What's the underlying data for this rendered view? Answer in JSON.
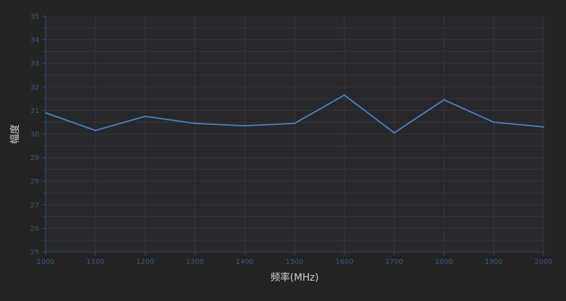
{
  "chart_data": {
    "type": "line",
    "title": "",
    "xlabel": "频率(MHz)",
    "ylabel": "幅度",
    "x": [
      1000,
      1100,
      1200,
      1300,
      1400,
      1500,
      1600,
      1700,
      1800,
      1900,
      2000
    ],
    "series": [
      {
        "values": [
          30.9,
          30.15,
          30.75,
          30.45,
          30.35,
          30.45,
          31.65,
          30.05,
          31.45,
          30.5,
          30.3
        ]
      }
    ],
    "xlim": [
      1000,
      2000
    ],
    "ylim": [
      25,
      35
    ],
    "xticks": [
      "1000",
      "1100",
      "1200",
      "1300",
      "1400",
      "1500",
      "1600",
      "1700",
      "1800",
      "1900",
      "2000"
    ],
    "yticks": [
      "25",
      "26",
      "27",
      "28",
      "29",
      "30",
      "31",
      "32",
      "33",
      "34",
      "35"
    ],
    "grid": true,
    "colors": {
      "background": "#232323",
      "plot_background": "#26282c",
      "grid": "#34363b",
      "axis": "#2e4e7a",
      "tick_label": "#3c5a86",
      "axis_title": "#d0d0d0",
      "line": "#4f7cb8"
    }
  }
}
